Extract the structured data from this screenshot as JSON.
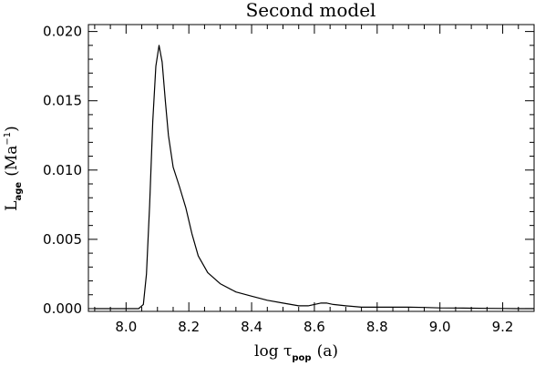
{
  "chart_data": {
    "type": "line",
    "title": "Second model",
    "xlabel": {
      "main": "log τ",
      "sub": "pop",
      "unit": "(a)"
    },
    "ylabel": {
      "main": "L",
      "sub": "age",
      "unit_pre": "(Ma",
      "unit_sup": "−1",
      "unit_post": ")"
    },
    "xlim": [
      7.88,
      9.3
    ],
    "ylim": [
      -0.0002,
      0.0205
    ],
    "xticks": [
      {
        "value": 8.0,
        "label": "8.0"
      },
      {
        "value": 8.2,
        "label": "8.2"
      },
      {
        "value": 8.4,
        "label": "8.4"
      },
      {
        "value": 8.6,
        "label": "8.6"
      },
      {
        "value": 8.8,
        "label": "8.8"
      },
      {
        "value": 9.0,
        "label": "9.0"
      },
      {
        "value": 9.2,
        "label": "9.2"
      }
    ],
    "yticks": [
      {
        "value": 0.0,
        "label": "0.000"
      },
      {
        "value": 0.005,
        "label": "0.005"
      },
      {
        "value": 0.01,
        "label": "0.010"
      },
      {
        "value": 0.015,
        "label": "0.015"
      },
      {
        "value": 0.02,
        "label": "0.020"
      }
    ],
    "grid": false,
    "series": [
      {
        "x": [
          7.9,
          8.0,
          8.04,
          8.055,
          8.065,
          8.075,
          8.085,
          8.095,
          8.105,
          8.115,
          8.125,
          8.135,
          8.15,
          8.17,
          8.19,
          8.21,
          8.23,
          8.26,
          8.3,
          8.35,
          8.4,
          8.45,
          8.5,
          8.55,
          8.58,
          8.6,
          8.62,
          8.64,
          8.66,
          8.7,
          8.75,
          8.8,
          8.85,
          8.9,
          8.95,
          9.0,
          9.05,
          9.1,
          9.15,
          9.2,
          9.25,
          9.3
        ],
        "y": [
          0.0,
          0.0,
          0.0,
          0.0003,
          0.0025,
          0.0075,
          0.0135,
          0.0175,
          0.019,
          0.0178,
          0.015,
          0.0125,
          0.0102,
          0.0088,
          0.0073,
          0.0054,
          0.0038,
          0.0026,
          0.0018,
          0.0012,
          0.0009,
          0.0006,
          0.0004,
          0.0002,
          0.0002,
          0.0003,
          0.0004,
          0.0004,
          0.0003,
          0.0002,
          0.0001,
          0.0001,
          0.0001,
          0.0001,
          8e-05,
          5e-05,
          4e-05,
          3e-05,
          2e-05,
          1e-05,
          0.0,
          0.0
        ]
      }
    ]
  }
}
